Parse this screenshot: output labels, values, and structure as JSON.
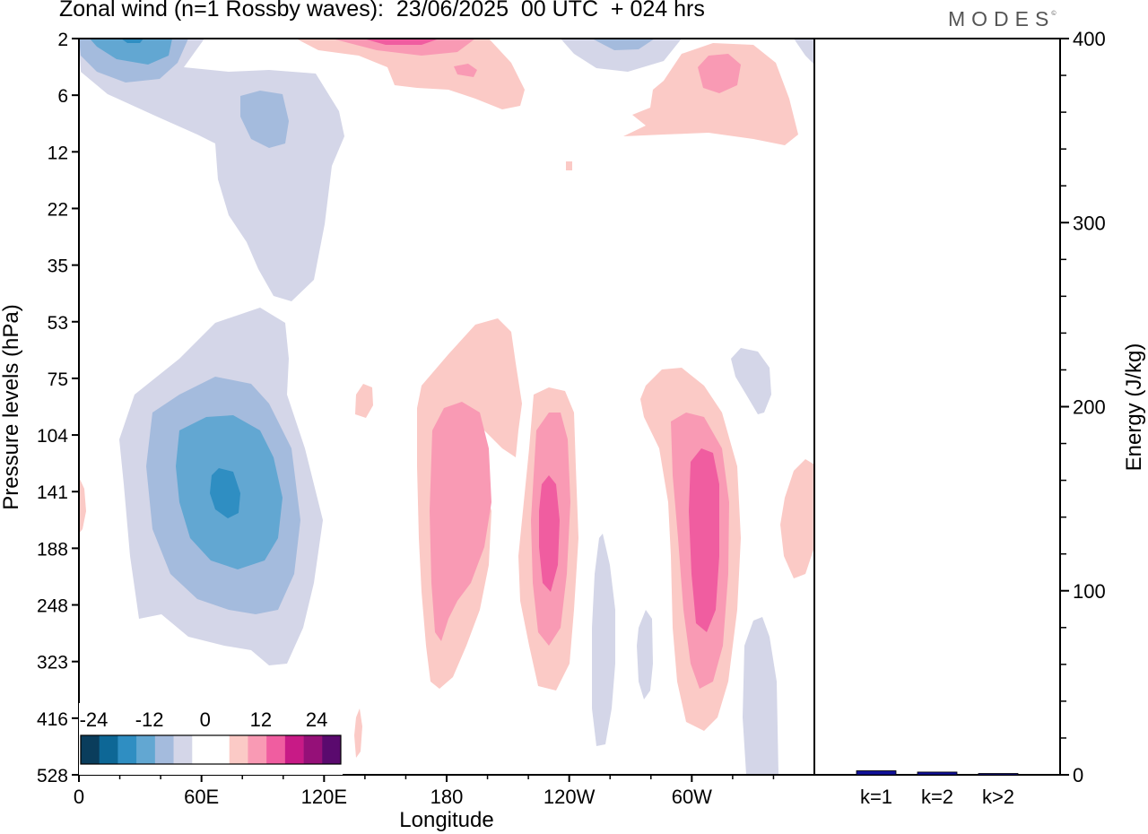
{
  "title": "Zonal wind (n=1 Rossby waves):  23/06/2025  00 UTC  + 024 hrs",
  "brand": "MODES",
  "brand_mark": "©",
  "chart_data": [
    {
      "type": "heatmap",
      "title": "Zonal wind (n=1 Rossby waves):  23/06/2025  00 UTC  + 024 hrs",
      "xlabel": "Longitude",
      "ylabel": "Pressure levels (hPa)",
      "x_tick_labels": [
        "0",
        "60E",
        "120E",
        "180",
        "120W",
        "60W"
      ],
      "x_tick_degrees": [
        0,
        60,
        120,
        180,
        240,
        300
      ],
      "xlim_degrees": [
        0,
        360
      ],
      "y_tick_labels": [
        "2",
        "6",
        "12",
        "22",
        "35",
        "53",
        "75",
        "104",
        "141",
        "188",
        "248",
        "323",
        "416",
        "528"
      ],
      "y_levels_hpa": [
        2,
        6,
        12,
        22,
        35,
        53,
        75,
        104,
        141,
        188,
        248,
        323,
        416,
        528
      ],
      "colorbar": {
        "tick_labels": [
          "-24",
          "-12",
          "0",
          "12",
          "24"
        ],
        "colors": [
          "#0a3d5c",
          "#0d6796",
          "#2f8ec2",
          "#62a7d2",
          "#a4bbdd",
          "#d4d6e8",
          "#ffffff",
          "#ffffff",
          "#fbcac6",
          "#f99ab4",
          "#f05da0",
          "#c81a86",
          "#951078",
          "#5a0a6e"
        ]
      },
      "color_levels": {
        "neg1": "#d4d6e8",
        "neg2": "#a4bbdd",
        "neg3": "#62a7d2",
        "neg4": "#2f8ec2",
        "pos1": "#fbcac6",
        "pos2": "#f99ab4",
        "pos3": "#f05da0",
        "pos4": "#c81a86"
      },
      "features": [
        {
          "sign": "negative",
          "peak": "-16",
          "longitude_deg": 73,
          "level_hpa": 141
        },
        {
          "sign": "negative",
          "peak": "-12",
          "longitude_deg": 25,
          "level_hpa": 2
        },
        {
          "sign": "negative",
          "peak": "-8",
          "longitude_deg": 90,
          "level_hpa": 9
        },
        {
          "sign": "positive",
          "peak": "8",
          "longitude_deg": 185,
          "level_hpa": 170
        },
        {
          "sign": "positive",
          "peak": "16",
          "longitude_deg": 238,
          "level_hpa": 180
        },
        {
          "sign": "positive",
          "peak": "16",
          "longitude_deg": 307,
          "level_hpa": 180
        },
        {
          "sign": "positive",
          "peak": "12",
          "longitude_deg": 150,
          "level_hpa": 2
        },
        {
          "sign": "positive",
          "peak": "8",
          "longitude_deg": 310,
          "level_hpa": 5
        },
        {
          "sign": "positive",
          "peak": "4",
          "longitude_deg": 350,
          "level_hpa": 150
        },
        {
          "sign": "negative",
          "peak": "-4",
          "longitude_deg": 330,
          "level_hpa": 90
        }
      ]
    },
    {
      "type": "bar",
      "categories": [
        "k=1",
        "k=2",
        "k>2"
      ],
      "values": [
        2.2,
        1.5,
        0.6
      ],
      "ylabel": "Energy (J/kg)",
      "ylim": [
        0,
        400
      ],
      "y_ticks": [
        0,
        100,
        200,
        300,
        400
      ],
      "bar_color": "#10109a"
    }
  ]
}
